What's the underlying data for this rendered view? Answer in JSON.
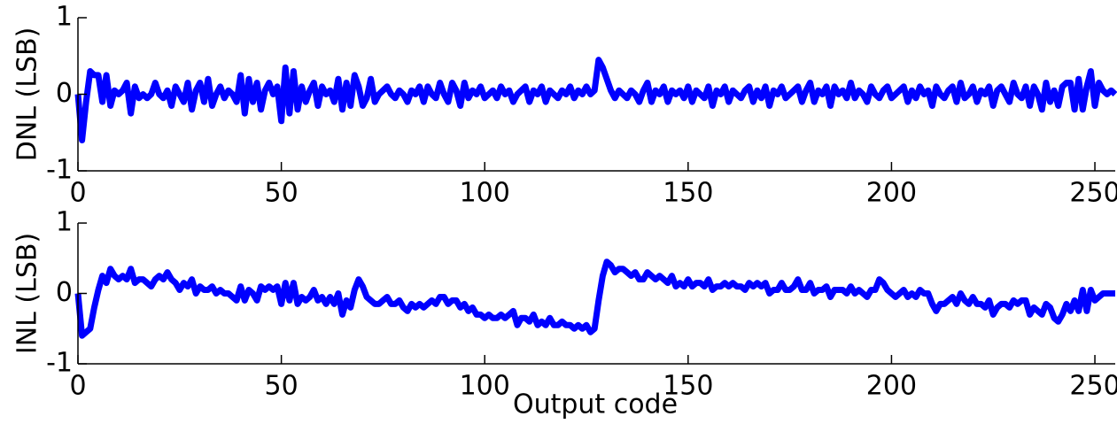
{
  "chart_data": [
    {
      "type": "line",
      "ylabel": "DNL (LSB)",
      "xlim": [
        0,
        255
      ],
      "xticks": [
        0,
        50,
        100,
        150,
        200,
        250
      ],
      "ylim": [
        -1,
        1
      ],
      "yticks": [
        -1,
        0,
        1
      ],
      "series": [
        {
          "color": "#0000ff",
          "values": [
            0,
            -0.6,
            -0.1,
            0.3,
            0.25,
            0.25,
            -0.1,
            0.25,
            -0.15,
            0.05,
            0,
            0.05,
            0.15,
            -0.25,
            0.1,
            -0.05,
            0,
            -0.05,
            0,
            0.15,
            0,
            -0.05,
            0.05,
            -0.15,
            0.1,
            0,
            -0.1,
            0.15,
            -0.2,
            0.05,
            0.15,
            -0.1,
            0.2,
            -0.15,
            0,
            0.1,
            -0.05,
            0.05,
            0,
            -0.1,
            0.25,
            -0.25,
            0.2,
            -0.1,
            0.15,
            -0.2,
            0.05,
            0.15,
            0,
            0.1,
            -0.35,
            0.35,
            -0.25,
            0.3,
            -0.2,
            0.1,
            -0.1,
            0.05,
            0.15,
            -0.15,
            0.1,
            0,
            0.05,
            -0.1,
            0.2,
            -0.2,
            0.15,
            -0.15,
            0.25,
            0.1,
            -0.15,
            -0.05,
            0.2,
            -0.1,
            0,
            0.05,
            0.1,
            0,
            -0.05,
            0.05,
            0,
            -0.1,
            0.05,
            0,
            0.1,
            -0.1,
            0.1,
            0,
            -0.05,
            0.15,
            0,
            -0.1,
            0.15,
            0.05,
            -0.15,
            0.15,
            -0.05,
            0.05,
            0,
            0.1,
            -0.05,
            0,
            0.05,
            -0.05,
            0.1,
            0,
            0.05,
            -0.1,
            0,
            0.05,
            0.1,
            -0.1,
            0.05,
            0,
            0.1,
            -0.1,
            0.05,
            0,
            -0.05,
            0.05,
            0,
            0.1,
            -0.05,
            0.05,
            0,
            0.1,
            0,
            0.05,
            0.45,
            0.35,
            0.2,
            0.05,
            -0.05,
            0.05,
            0,
            -0.05,
            0.05,
            0,
            -0.1,
            0.05,
            0.15,
            -0.1,
            0.05,
            0,
            0.1,
            -0.1,
            0.05,
            0,
            0.05,
            -0.05,
            0.1,
            -0.1,
            0.05,
            0,
            -0.05,
            0.1,
            -0.15,
            0.05,
            0,
            0.1,
            -0.1,
            0.05,
            0,
            -0.05,
            0.05,
            0.1,
            -0.1,
            0.05,
            -0.05,
            0.1,
            -0.15,
            0.05,
            0,
            0.1,
            -0.05,
            0,
            0.05,
            0.1,
            -0.1,
            0.05,
            0.15,
            -0.1,
            0.05,
            0,
            0.1,
            -0.15,
            0.1,
            0,
            0.05,
            -0.05,
            0.15,
            -0.05,
            0.05,
            0,
            -0.1,
            0.1,
            0,
            -0.05,
            0.05,
            0.1,
            -0.05,
            0,
            0.05,
            0.1,
            -0.1,
            0.05,
            -0.05,
            0.1,
            0,
            0.05,
            -0.15,
            0.1,
            0,
            -0.05,
            0.05,
            0.1,
            -0.1,
            0.15,
            -0.05,
            0,
            0.1,
            -0.1,
            0.05,
            0,
            0.1,
            -0.15,
            0.05,
            0.1,
            0,
            -0.1,
            0.15,
            0,
            -0.05,
            0.1,
            -0.15,
            0.1,
            0,
            -0.2,
            0.15,
            -0.1,
            0.05,
            -0.15,
            0.1,
            0.15,
            0.15,
            -0.2,
            0.2,
            -0.2,
            0.1,
            0.3,
            -0.15,
            0.15,
            0.05,
            0,
            0.05,
            0
          ]
        }
      ]
    },
    {
      "type": "line",
      "ylabel": "INL (LSB)",
      "xlabel": "Output code",
      "xlim": [
        0,
        255
      ],
      "xticks": [
        0,
        50,
        100,
        150,
        200,
        250
      ],
      "ylim": [
        -1,
        1
      ],
      "yticks": [
        -1,
        0,
        1
      ],
      "series": [
        {
          "color": "#0000ff",
          "values": [
            0,
            -0.6,
            -0.55,
            -0.5,
            -0.2,
            0.05,
            0.25,
            0.15,
            0.35,
            0.25,
            0.2,
            0.25,
            0.2,
            0.35,
            0.15,
            0.2,
            0.2,
            0.15,
            0.1,
            0.2,
            0.25,
            0.2,
            0.3,
            0.2,
            0.15,
            0.05,
            0.15,
            0.1,
            0.2,
            0,
            0.1,
            0.05,
            0.05,
            0.1,
            0,
            0.05,
            0,
            0,
            -0.05,
            -0.1,
            0.1,
            -0.1,
            0.05,
            0,
            -0.1,
            0.1,
            0.05,
            0.1,
            0.05,
            0.1,
            -0.15,
            0.15,
            -0.1,
            0.15,
            -0.15,
            -0.05,
            -0.1,
            -0.05,
            0.05,
            -0.1,
            -0.05,
            -0.15,
            -0.05,
            -0.15,
            0,
            -0.3,
            -0.1,
            -0.2,
            0.05,
            0.2,
            0.1,
            -0.05,
            -0.1,
            -0.15,
            -0.15,
            -0.1,
            -0.05,
            -0.15,
            -0.15,
            -0.1,
            -0.2,
            -0.25,
            -0.15,
            -0.2,
            -0.15,
            -0.2,
            -0.15,
            -0.1,
            -0.15,
            -0.05,
            -0.05,
            -0.15,
            -0.1,
            -0.1,
            -0.2,
            -0.15,
            -0.25,
            -0.2,
            -0.3,
            -0.3,
            -0.35,
            -0.3,
            -0.35,
            -0.35,
            -0.3,
            -0.35,
            -0.3,
            -0.25,
            -0.45,
            -0.35,
            -0.35,
            -0.4,
            -0.3,
            -0.45,
            -0.4,
            -0.45,
            -0.35,
            -0.45,
            -0.45,
            -0.4,
            -0.45,
            -0.45,
            -0.5,
            -0.45,
            -0.5,
            -0.45,
            -0.55,
            -0.5,
            -0.1,
            0.25,
            0.45,
            0.4,
            0.3,
            0.35,
            0.35,
            0.3,
            0.25,
            0.3,
            0.2,
            0.2,
            0.3,
            0.25,
            0.2,
            0.25,
            0.2,
            0.15,
            0.25,
            0.1,
            0.15,
            0.1,
            0.2,
            0.1,
            0.15,
            0.15,
            0.1,
            0.2,
            0.05,
            0.1,
            0.1,
            0.15,
            0.1,
            0.15,
            0.1,
            0.1,
            0.05,
            0.15,
            0.1,
            0.15,
            0.1,
            0.15,
            0,
            0.05,
            0.05,
            0.15,
            0.05,
            0.05,
            0.1,
            0.2,
            0.05,
            0.05,
            0.15,
            0,
            0.05,
            0.05,
            0.1,
            -0.05,
            0.05,
            0.05,
            0.05,
            0,
            0.1,
            0,
            0.05,
            0,
            -0.05,
            0.05,
            0.05,
            0.2,
            0.15,
            0.05,
            0,
            -0.05,
            0,
            0.05,
            -0.05,
            0,
            -0.05,
            0.05,
            0,
            0,
            -0.15,
            -0.25,
            -0.15,
            -0.15,
            -0.1,
            -0.05,
            -0.15,
            0,
            -0.1,
            -0.15,
            -0.05,
            -0.15,
            -0.15,
            -0.2,
            -0.1,
            -0.3,
            -0.2,
            -0.15,
            -0.15,
            -0.2,
            -0.1,
            -0.15,
            -0.1,
            -0.1,
            -0.3,
            -0.2,
            -0.25,
            -0.3,
            -0.15,
            -0.2,
            -0.35,
            -0.4,
            -0.3,
            -0.15,
            -0.25,
            -0.1,
            -0.25,
            0.05,
            -0.25,
            0.05,
            -0.1,
            -0.05,
            0,
            0,
            0,
            0
          ]
        }
      ]
    }
  ]
}
